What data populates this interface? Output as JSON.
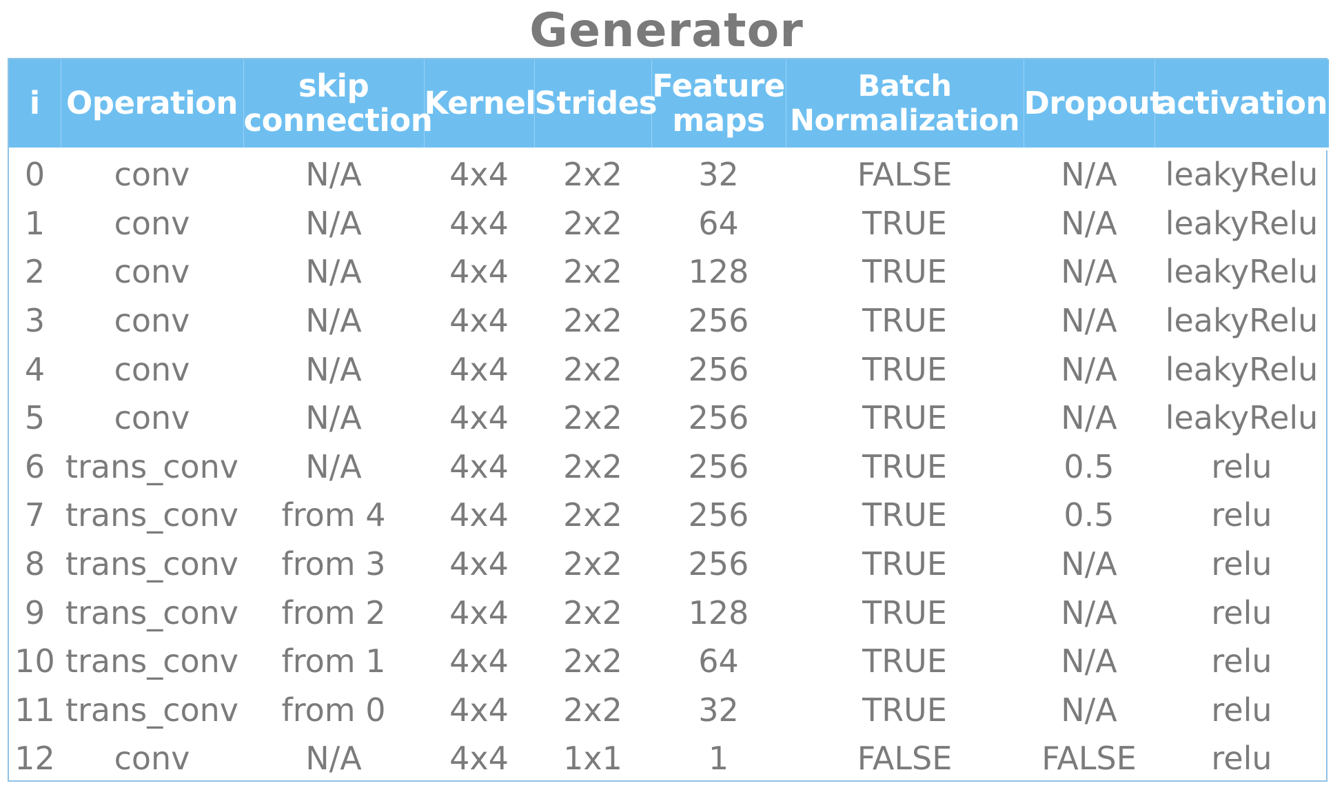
{
  "title": "Generator",
  "table": {
    "columns": [
      "i",
      "Operation",
      "skip\nconnection",
      "Kernel",
      "Strides",
      "Feature\nmaps",
      "Batch\nNormalization",
      "Dropout",
      "activation"
    ],
    "rows": [
      [
        "0",
        "conv",
        "N/A",
        "4x4",
        "2x2",
        "32",
        "FALSE",
        "N/A",
        "leakyRelu"
      ],
      [
        "1",
        "conv",
        "N/A",
        "4x4",
        "2x2",
        "64",
        "TRUE",
        "N/A",
        "leakyRelu"
      ],
      [
        "2",
        "conv",
        "N/A",
        "4x4",
        "2x2",
        "128",
        "TRUE",
        "N/A",
        "leakyRelu"
      ],
      [
        "3",
        "conv",
        "N/A",
        "4x4",
        "2x2",
        "256",
        "TRUE",
        "N/A",
        "leakyRelu"
      ],
      [
        "4",
        "conv",
        "N/A",
        "4x4",
        "2x2",
        "256",
        "TRUE",
        "N/A",
        "leakyRelu"
      ],
      [
        "5",
        "conv",
        "N/A",
        "4x4",
        "2x2",
        "256",
        "TRUE",
        "N/A",
        "leakyRelu"
      ],
      [
        "6",
        "trans_conv",
        "N/A",
        "4x4",
        "2x2",
        "256",
        "TRUE",
        "0.5",
        "relu"
      ],
      [
        "7",
        "trans_conv",
        "from 4",
        "4x4",
        "2x2",
        "256",
        "TRUE",
        "0.5",
        "relu"
      ],
      [
        "8",
        "trans_conv",
        "from 3",
        "4x4",
        "2x2",
        "256",
        "TRUE",
        "N/A",
        "relu"
      ],
      [
        "9",
        "trans_conv",
        "from 2",
        "4x4",
        "2x2",
        "128",
        "TRUE",
        "N/A",
        "relu"
      ],
      [
        "10",
        "trans_conv",
        "from 1",
        "4x4",
        "2x2",
        "64",
        "TRUE",
        "N/A",
        "relu"
      ],
      [
        "11",
        "trans_conv",
        "from 0",
        "4x4",
        "2x2",
        "32",
        "TRUE",
        "N/A",
        "relu"
      ],
      [
        "12",
        "conv",
        "N/A",
        "4x4",
        "1x1",
        "1",
        "FALSE",
        "FALSE",
        "relu"
      ]
    ]
  }
}
